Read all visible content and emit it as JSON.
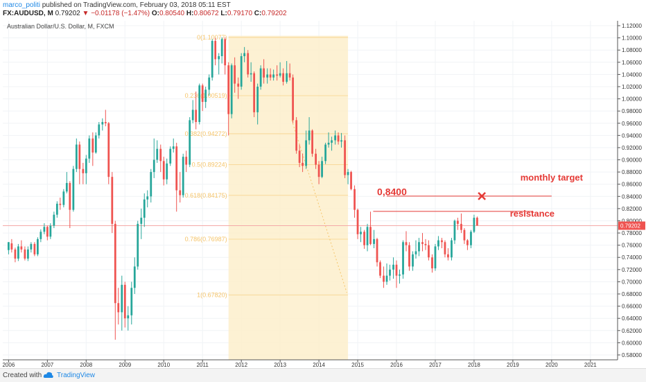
{
  "header": {
    "author": "marco_politi",
    "published": "published on TradingView.com, February 03, 2018 05:11 EST",
    "symbol": "FX:AUDUSD, M",
    "last": "0.79202",
    "change": "−0.01178 (−1.47%)",
    "o_label": "O:",
    "o_value": "0.80540",
    "h_label": "H:",
    "h_value": "0.80672",
    "l_label": "L:",
    "l_value": "0.79170",
    "c_label": "C:",
    "c_value": "0.79202"
  },
  "footer": {
    "created_with": "Created with",
    "brand": "TradingView"
  },
  "chart_data": {
    "type": "candlestick",
    "title": "Australian Dollar/U.S. Dollar, M, FXCM",
    "x_tick_labels": [
      "2006",
      "2007",
      "2008",
      "2009",
      "2010",
      "2011",
      "2012",
      "2013",
      "2014",
      "2015",
      "2016",
      "2017",
      "2018",
      "2019",
      "2020",
      "2021"
    ],
    "y_tick_labels": [
      "1.12000",
      "1.10000",
      "1.08000",
      "1.06000",
      "1.04000",
      "1.02000",
      "1.00000",
      "0.98000",
      "0.96000",
      "0.94000",
      "0.92000",
      "0.90000",
      "0.88000",
      "0.86000",
      "0.84000",
      "0.82000",
      "0.80000",
      "0.78000",
      "0.76000",
      "0.74000",
      "0.72000",
      "0.70000",
      "0.68000",
      "0.66000",
      "0.64000",
      "0.62000",
      "0.60000",
      "0.58000"
    ],
    "ylim": [
      0.572,
      1.128
    ],
    "xlim": [
      2005.85,
      2021.7
    ],
    "last_price_label": "0.79202",
    "last_price": 0.79202,
    "colors": {
      "up": "#26a69a",
      "down": "#ef5350",
      "fib": "#f5c469",
      "annot": "#e53935",
      "shade": "#fdeecb"
    },
    "fib_box": {
      "x_start": 2011.67,
      "x_end": 2014.75
    },
    "fib_levels": [
      {
        "label": "0(1.10077)",
        "price": 1.10077
      },
      {
        "label": "0.236(1.00519)",
        "price": 1.00519
      },
      {
        "label": "0.382(0.94272)",
        "price": 0.94272
      },
      {
        "label": "0.5(0.89224)",
        "price": 0.89224
      },
      {
        "label": "0.618(0.84175)",
        "price": 0.84175
      },
      {
        "label": "0.786(0.76987)",
        "price": 0.76987
      },
      {
        "label": "1(0.67820)",
        "price": 0.6782
      }
    ],
    "annotations": [
      {
        "text": "monthly target",
        "x": 2020.0,
        "y": 0.866
      },
      {
        "text": "0,8400",
        "x": 2015.5,
        "y": 0.842
      },
      {
        "text": "resistance",
        "x": 2019.5,
        "y": 0.807
      }
    ],
    "target_line": {
      "x1": 2015.75,
      "x2": 2020.0,
      "y": 0.8405,
      "marker_x": 2018.2
    },
    "resistance_line": {
      "x1": 2015.4,
      "x2": 2019.5,
      "y": 0.8155
    },
    "candles": [
      [
        2006.0,
        0.752,
        0.765,
        0.765,
        0.745
      ],
      [
        2006.08,
        0.763,
        0.753,
        0.77,
        0.748
      ],
      [
        2006.17,
        0.753,
        0.738,
        0.756,
        0.732
      ],
      [
        2006.25,
        0.738,
        0.758,
        0.762,
        0.734
      ],
      [
        2006.33,
        0.758,
        0.753,
        0.768,
        0.748
      ],
      [
        2006.42,
        0.753,
        0.738,
        0.758,
        0.735
      ],
      [
        2006.5,
        0.738,
        0.753,
        0.758,
        0.734
      ],
      [
        2006.58,
        0.753,
        0.762,
        0.765,
        0.748
      ],
      [
        2006.67,
        0.762,
        0.745,
        0.765,
        0.742
      ],
      [
        2006.75,
        0.745,
        0.77,
        0.773,
        0.742
      ],
      [
        2006.83,
        0.77,
        0.782,
        0.786,
        0.765
      ],
      [
        2006.92,
        0.782,
        0.79,
        0.796,
        0.778
      ],
      [
        2007.0,
        0.79,
        0.774,
        0.792,
        0.768
      ],
      [
        2007.08,
        0.774,
        0.792,
        0.796,
        0.77
      ],
      [
        2007.17,
        0.792,
        0.81,
        0.815,
        0.788
      ],
      [
        2007.25,
        0.81,
        0.828,
        0.832,
        0.805
      ],
      [
        2007.33,
        0.828,
        0.826,
        0.838,
        0.818
      ],
      [
        2007.42,
        0.826,
        0.848,
        0.852,
        0.822
      ],
      [
        2007.5,
        0.848,
        0.862,
        0.88,
        0.845
      ],
      [
        2007.58,
        0.862,
        0.818,
        0.865,
        0.788
      ],
      [
        2007.67,
        0.818,
        0.885,
        0.89,
        0.815
      ],
      [
        2007.75,
        0.885,
        0.925,
        0.935,
        0.88
      ],
      [
        2007.83,
        0.925,
        0.885,
        0.93,
        0.86
      ],
      [
        2007.92,
        0.885,
        0.878,
        0.895,
        0.86
      ],
      [
        2008.0,
        0.878,
        0.902,
        0.908,
        0.86
      ],
      [
        2008.08,
        0.902,
        0.935,
        0.94,
        0.895
      ],
      [
        2008.17,
        0.935,
        0.912,
        0.945,
        0.89
      ],
      [
        2008.25,
        0.912,
        0.94,
        0.945,
        0.91
      ],
      [
        2008.33,
        0.94,
        0.958,
        0.962,
        0.935
      ],
      [
        2008.42,
        0.958,
        0.962,
        0.968,
        0.948
      ],
      [
        2008.5,
        0.962,
        0.96,
        0.982,
        0.955
      ],
      [
        2008.58,
        0.96,
        0.872,
        0.962,
        0.86
      ],
      [
        2008.67,
        0.872,
        0.795,
        0.88,
        0.78
      ],
      [
        2008.75,
        0.795,
        0.665,
        0.8,
        0.605
      ],
      [
        2008.83,
        0.665,
        0.65,
        0.69,
        0.63
      ],
      [
        2008.92,
        0.65,
        0.695,
        0.71,
        0.62
      ],
      [
        2009.0,
        0.695,
        0.64,
        0.7,
        0.625
      ],
      [
        2009.08,
        0.64,
        0.645,
        0.66,
        0.62
      ],
      [
        2009.17,
        0.645,
        0.69,
        0.7,
        0.63
      ],
      [
        2009.25,
        0.69,
        0.725,
        0.74,
        0.68
      ],
      [
        2009.33,
        0.725,
        0.795,
        0.8,
        0.72
      ],
      [
        2009.42,
        0.795,
        0.805,
        0.82,
        0.77
      ],
      [
        2009.5,
        0.805,
        0.835,
        0.845,
        0.79
      ],
      [
        2009.58,
        0.835,
        0.84,
        0.85,
        0.822
      ],
      [
        2009.67,
        0.84,
        0.88,
        0.885,
        0.83
      ],
      [
        2009.75,
        0.88,
        0.9,
        0.935,
        0.87
      ],
      [
        2009.83,
        0.9,
        0.918,
        0.932,
        0.895
      ],
      [
        2009.92,
        0.918,
        0.898,
        0.925,
        0.88
      ],
      [
        2010.0,
        0.898,
        0.868,
        0.905,
        0.858
      ],
      [
        2010.08,
        0.868,
        0.894,
        0.902,
        0.86
      ],
      [
        2010.17,
        0.894,
        0.918,
        0.922,
        0.89
      ],
      [
        2010.25,
        0.918,
        0.922,
        0.935,
        0.912
      ],
      [
        2010.33,
        0.922,
        0.85,
        0.928,
        0.815
      ],
      [
        2010.42,
        0.85,
        0.842,
        0.88,
        0.83
      ],
      [
        2010.5,
        0.842,
        0.905,
        0.91,
        0.838
      ],
      [
        2010.58,
        0.905,
        0.892,
        0.915,
        0.88
      ],
      [
        2010.67,
        0.892,
        0.965,
        0.97,
        0.888
      ],
      [
        2010.75,
        0.965,
        0.982,
        0.998,
        0.96
      ],
      [
        2010.83,
        0.982,
        0.962,
        1.012,
        0.95
      ],
      [
        2010.92,
        0.962,
        1.022,
        1.025,
        0.958
      ],
      [
        2011.0,
        1.022,
        0.995,
        1.025,
        0.98
      ],
      [
        2011.08,
        0.995,
        1.015,
        1.02,
        0.985
      ],
      [
        2011.17,
        1.015,
        1.035,
        1.04,
        1.005
      ],
      [
        2011.25,
        1.035,
        1.095,
        1.098,
        1.03
      ],
      [
        2011.33,
        1.095,
        1.065,
        1.1,
        1.055
      ],
      [
        2011.42,
        1.065,
        1.07,
        1.075,
        1.04
      ],
      [
        2011.5,
        1.07,
        1.098,
        1.101,
        1.058
      ],
      [
        2011.58,
        1.098,
        1.055,
        1.101,
        1.04
      ],
      [
        2011.67,
        1.055,
        0.975,
        1.06,
        0.94
      ],
      [
        2011.75,
        0.975,
        1.055,
        1.058,
        0.968
      ],
      [
        2011.83,
        1.055,
        1.025,
        1.068,
        1.01
      ],
      [
        2011.92,
        1.025,
        1.02,
        1.035,
        1.0
      ],
      [
        2012.0,
        1.02,
        1.07,
        1.075,
        1.015
      ],
      [
        2012.08,
        1.07,
        1.075,
        1.085,
        1.06
      ],
      [
        2012.17,
        1.075,
        1.04,
        1.08,
        1.035
      ],
      [
        2012.25,
        1.04,
        1.042,
        1.06,
        1.028
      ],
      [
        2012.33,
        1.042,
        0.978,
        1.045,
        0.97
      ],
      [
        2012.42,
        0.978,
        1.02,
        1.025,
        0.958
      ],
      [
        2012.5,
        1.02,
        1.05,
        1.055,
        1.015
      ],
      [
        2012.58,
        1.05,
        1.035,
        1.065,
        1.025
      ],
      [
        2012.67,
        1.035,
        1.04,
        1.05,
        1.025
      ],
      [
        2012.75,
        1.04,
        1.035,
        1.05,
        1.03
      ],
      [
        2012.83,
        1.035,
        1.04,
        1.048,
        1.03
      ],
      [
        2012.92,
        1.04,
        1.038,
        1.055,
        1.03
      ],
      [
        2013.0,
        1.038,
        1.042,
        1.06,
        1.035
      ],
      [
        2013.08,
        1.042,
        1.028,
        1.05,
        1.022
      ],
      [
        2013.17,
        1.028,
        1.042,
        1.062,
        1.025
      ],
      [
        2013.25,
        1.042,
        1.035,
        1.058,
        1.03
      ],
      [
        2013.33,
        1.035,
        0.965,
        1.04,
        0.96
      ],
      [
        2013.42,
        0.965,
        0.915,
        0.97,
        0.91
      ],
      [
        2013.5,
        0.915,
        0.895,
        0.925,
        0.888
      ],
      [
        2013.58,
        0.895,
        0.89,
        0.91,
        0.88
      ],
      [
        2013.67,
        0.89,
        0.932,
        0.948,
        0.885
      ],
      [
        2013.75,
        0.932,
        0.948,
        0.97,
        0.925
      ],
      [
        2013.83,
        0.948,
        0.91,
        0.95,
        0.905
      ],
      [
        2013.92,
        0.91,
        0.892,
        0.918,
        0.885
      ],
      [
        2014.0,
        0.892,
        0.872,
        0.898,
        0.86
      ],
      [
        2014.08,
        0.872,
        0.898,
        0.905,
        0.87
      ],
      [
        2014.17,
        0.898,
        0.925,
        0.928,
        0.893
      ],
      [
        2014.25,
        0.925,
        0.928,
        0.945,
        0.92
      ],
      [
        2014.33,
        0.928,
        0.932,
        0.938,
        0.915
      ],
      [
        2014.42,
        0.932,
        0.94,
        0.948,
        0.925
      ],
      [
        2014.5,
        0.94,
        0.93,
        0.945,
        0.925
      ],
      [
        2014.58,
        0.93,
        0.932,
        0.944,
        0.92
      ],
      [
        2014.67,
        0.932,
        0.875,
        0.94,
        0.87
      ],
      [
        2014.75,
        0.875,
        0.88,
        0.885,
        0.86
      ],
      [
        2014.83,
        0.88,
        0.852,
        0.882,
        0.85
      ],
      [
        2014.92,
        0.852,
        0.818,
        0.858,
        0.805
      ],
      [
        2015.0,
        0.818,
        0.778,
        0.82,
        0.77
      ],
      [
        2015.08,
        0.778,
        0.782,
        0.79,
        0.765
      ],
      [
        2015.17,
        0.782,
        0.76,
        0.785,
        0.754
      ],
      [
        2015.25,
        0.76,
        0.79,
        0.795,
        0.75
      ],
      [
        2015.33,
        0.79,
        0.762,
        0.815,
        0.76
      ],
      [
        2015.42,
        0.762,
        0.77,
        0.785,
        0.755
      ],
      [
        2015.5,
        0.77,
        0.732,
        0.772,
        0.725
      ],
      [
        2015.58,
        0.732,
        0.71,
        0.735,
        0.706
      ],
      [
        2015.67,
        0.71,
        0.7,
        0.725,
        0.69
      ],
      [
        2015.75,
        0.7,
        0.71,
        0.73,
        0.695
      ],
      [
        2015.83,
        0.71,
        0.72,
        0.728,
        0.702
      ],
      [
        2015.92,
        0.72,
        0.728,
        0.74,
        0.705
      ],
      [
        2016.0,
        0.728,
        0.71,
        0.735,
        0.69
      ],
      [
        2016.08,
        0.71,
        0.712,
        0.72,
        0.697
      ],
      [
        2016.17,
        0.712,
        0.765,
        0.768,
        0.705
      ],
      [
        2016.25,
        0.765,
        0.76,
        0.783,
        0.75
      ],
      [
        2016.33,
        0.76,
        0.725,
        0.765,
        0.718
      ],
      [
        2016.42,
        0.725,
        0.745,
        0.75,
        0.718
      ],
      [
        2016.5,
        0.745,
        0.75,
        0.768,
        0.738
      ],
      [
        2016.58,
        0.75,
        0.765,
        0.772,
        0.742
      ],
      [
        2016.67,
        0.765,
        0.762,
        0.78,
        0.75
      ],
      [
        2016.75,
        0.762,
        0.76,
        0.77,
        0.752
      ],
      [
        2016.83,
        0.76,
        0.74,
        0.768,
        0.735
      ],
      [
        2016.92,
        0.74,
        0.722,
        0.745,
        0.715
      ],
      [
        2017.0,
        0.722,
        0.758,
        0.762,
        0.718
      ],
      [
        2017.08,
        0.758,
        0.768,
        0.775,
        0.752
      ],
      [
        2017.17,
        0.768,
        0.765,
        0.772,
        0.755
      ],
      [
        2017.25,
        0.765,
        0.745,
        0.768,
        0.74
      ],
      [
        2017.33,
        0.745,
        0.74,
        0.755,
        0.735
      ],
      [
        2017.42,
        0.74,
        0.768,
        0.772,
        0.735
      ],
      [
        2017.5,
        0.768,
        0.8,
        0.802,
        0.762
      ],
      [
        2017.58,
        0.8,
        0.795,
        0.805,
        0.785
      ],
      [
        2017.67,
        0.795,
        0.785,
        0.812,
        0.78
      ],
      [
        2017.75,
        0.785,
        0.768,
        0.788,
        0.762
      ],
      [
        2017.83,
        0.768,
        0.76,
        0.77,
        0.752
      ],
      [
        2017.92,
        0.76,
        0.782,
        0.785,
        0.755
      ],
      [
        2018.0,
        0.782,
        0.805,
        0.81,
        0.78
      ],
      [
        2018.08,
        0.805,
        0.792,
        0.807,
        0.792
      ]
    ]
  }
}
